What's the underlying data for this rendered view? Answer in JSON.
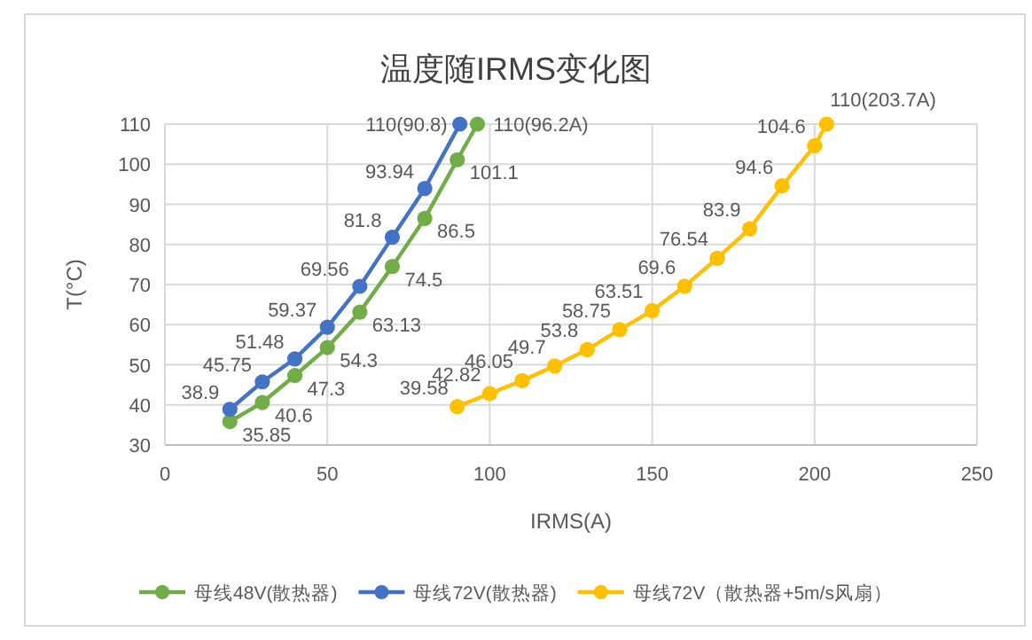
{
  "chart_data": {
    "type": "line",
    "title": "温度随IRMS变化图",
    "xlabel": "IRMS(A)",
    "ylabel": "T(°C)",
    "xlim": [
      0,
      250
    ],
    "xticks": [
      0,
      50,
      100,
      150,
      200,
      250
    ],
    "ylim": [
      30,
      110
    ],
    "yticks": [
      30,
      40,
      50,
      60,
      70,
      80,
      90,
      100,
      110
    ],
    "grid": true,
    "legend": "bottom",
    "marker": "circle",
    "line_style": "solid",
    "series": [
      {
        "name": "母线48V(散热器)",
        "color": "#70ad47",
        "x": [
          20,
          30,
          40,
          50,
          60,
          70,
          80,
          90,
          96.2
        ],
        "values": [
          35.85,
          40.6,
          47.3,
          54.3,
          63.13,
          74.5,
          86.5,
          101.1,
          110
        ],
        "value_labels": [
          "35.85",
          "40.6",
          "47.3",
          "54.3",
          "63.13",
          "74.5",
          "86.5",
          "101.1",
          "110(96.2A)"
        ]
      },
      {
        "name": "母线72V(散热器)",
        "color": "#4472c4",
        "x": [
          20,
          30,
          40,
          50,
          60,
          70,
          80,
          90.8
        ],
        "values": [
          38.9,
          45.75,
          51.48,
          59.37,
          69.56,
          81.8,
          93.94,
          110
        ],
        "value_labels": [
          "38.9",
          "45.75",
          "51.48",
          "59.37",
          "69.56",
          "81.8",
          "93.94",
          "110(90.8)"
        ]
      },
      {
        "name": "母线72V（散热器+5m/s风扇）",
        "color": "#ffc000",
        "x": [
          90,
          100,
          110,
          120,
          130,
          140,
          150,
          160,
          170,
          180,
          190,
          200,
          203.7
        ],
        "values": [
          39.58,
          42.82,
          46.05,
          49.7,
          53.8,
          58.75,
          63.51,
          69.6,
          76.54,
          83.9,
          94.6,
          104.6,
          110
        ],
        "value_labels": [
          "39.58",
          "42.82",
          "46.05",
          "49.7",
          "53.8",
          "58.75",
          "63.51",
          "69.6",
          "76.54",
          "83.9",
          "94.6",
          "104.6",
          "110(203.7A)"
        ]
      }
    ]
  }
}
